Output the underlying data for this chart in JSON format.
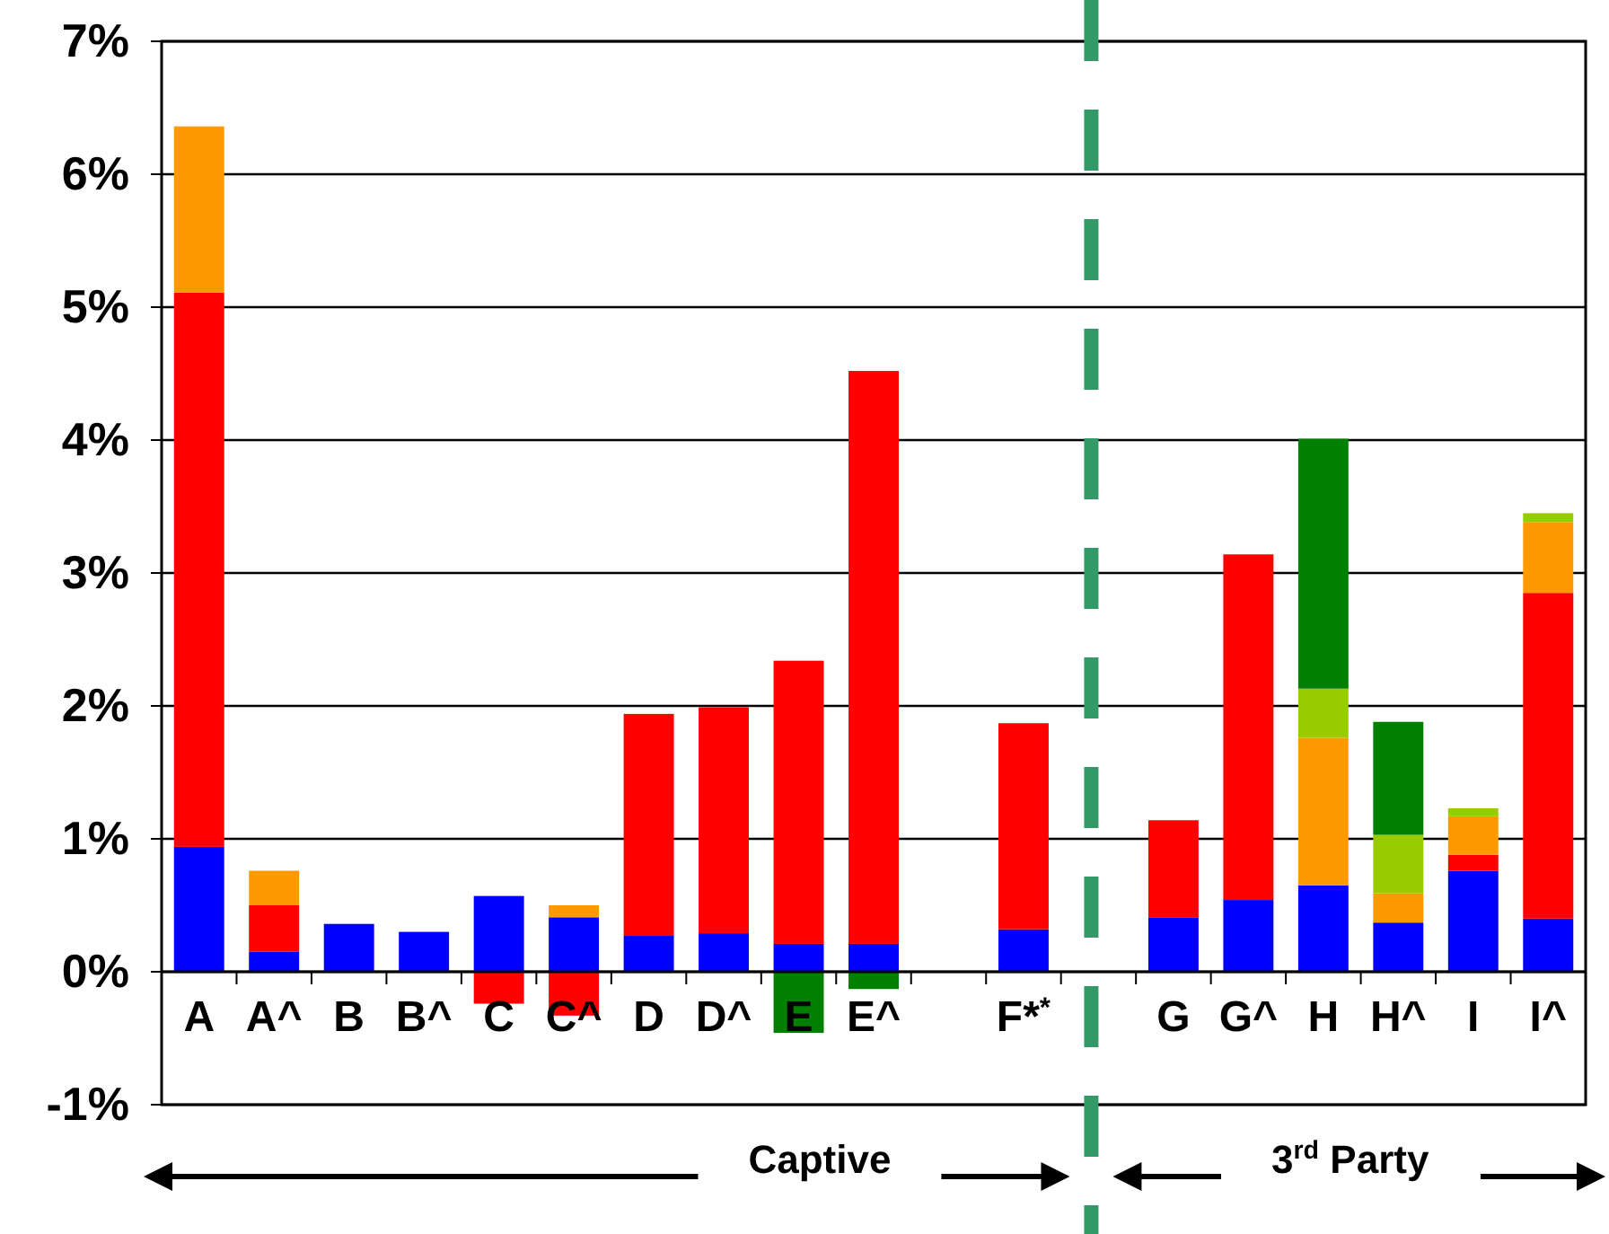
{
  "chart_data": {
    "type": "bar",
    "stacked": true,
    "categories": [
      "A",
      "A^",
      "B",
      "B^",
      "C",
      "C^",
      "D",
      "D^",
      "E",
      "E^",
      null,
      "F*$^{*}$",
      null,
      "G",
      "G^",
      "H",
      "H^",
      "I",
      "I^"
    ],
    "series": [
      {
        "color": "#0000ff",
        "values": [
          0.94,
          0.15,
          0.36,
          0.3,
          0.57,
          0.41,
          0.27,
          0.29,
          0.21,
          0.21,
          null,
          0.32,
          null,
          0.41,
          0.54,
          0.65,
          0.37,
          0.76,
          0.4
        ]
      },
      {
        "color": "#ff0000",
        "values": [
          4.17,
          0.35,
          null,
          null,
          -0.24,
          -0.33,
          1.67,
          1.7,
          2.13,
          4.31,
          null,
          1.55,
          null,
          0.73,
          2.6,
          null,
          null,
          0.12,
          2.45
        ]
      },
      {
        "color": "#ff9900",
        "values": [
          1.25,
          0.26,
          null,
          null,
          null,
          0.09,
          null,
          null,
          null,
          null,
          null,
          null,
          null,
          null,
          null,
          1.11,
          0.22,
          0.29,
          0.53
        ]
      },
      {
        "color": "#99cc00",
        "values": [
          null,
          null,
          null,
          null,
          null,
          null,
          null,
          null,
          null,
          null,
          null,
          null,
          null,
          null,
          null,
          0.37,
          0.44,
          0.06,
          0.07
        ]
      },
      {
        "color": "#008000",
        "values": [
          null,
          null,
          null,
          null,
          null,
          null,
          null,
          null,
          -0.46,
          -0.13,
          null,
          null,
          null,
          null,
          null,
          1.88,
          0.85,
          null,
          null
        ]
      }
    ],
    "ylim": [
      -1,
      7
    ],
    "yticks": [
      {
        "value": -1,
        "label": "-1%"
      },
      {
        "value": 0,
        "label": "0%"
      },
      {
        "value": 1,
        "label": "1%"
      },
      {
        "value": 2,
        "label": "2%"
      },
      {
        "value": 3,
        "label": "3%"
      },
      {
        "value": 4,
        "label": "4%"
      },
      {
        "value": 5,
        "label": "5%"
      },
      {
        "value": 6,
        "label": "6%"
      },
      {
        "value": 7,
        "label": "7%"
      }
    ],
    "grid": "y",
    "annotations": [
      "Captive",
      "3$^{rd}$ Party"
    ]
  }
}
